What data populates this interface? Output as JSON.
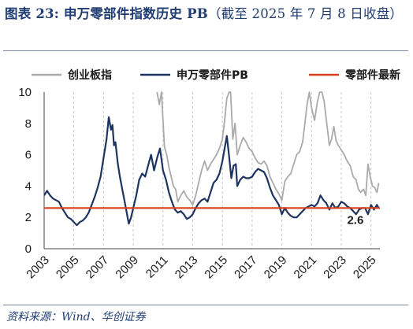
{
  "title": {
    "main": "图表 23: 申万零部件指数历史 PB",
    "sub": "（截至 2025 年 7 月 8 日收盘）"
  },
  "source": "资料来源：Wind、华创证券",
  "chart_data": {
    "type": "line",
    "title": "申万零部件指数历史 PB",
    "xlabel": "",
    "ylabel": "",
    "ylim": [
      0,
      10
    ],
    "y_ticks": [
      "0",
      "2",
      "4",
      "6",
      "8",
      "10"
    ],
    "xlim": [
      2003,
      2025.6
    ],
    "x_ticks": [
      "2003",
      "2005",
      "2007",
      "2009",
      "2011",
      "2013",
      "2015",
      "2017",
      "2019",
      "2021",
      "2023",
      "2025"
    ],
    "grid": "vertical dashed",
    "legend_position": "top",
    "series": [
      {
        "name": "创业板指",
        "color": "#aaaaaa",
        "x": [
          2010.6,
          2010.75,
          2010.9,
          2011.0,
          2011.1,
          2011.25,
          2011.4,
          2011.55,
          2011.7,
          2011.85,
          2012.0,
          2012.2,
          2012.4,
          2012.6,
          2012.8,
          2013.0,
          2013.2,
          2013.4,
          2013.6,
          2013.8,
          2014.0,
          2014.2,
          2014.4,
          2014.6,
          2014.8,
          2015.0,
          2015.15,
          2015.3,
          2015.45,
          2015.55,
          2015.7,
          2015.85,
          2016.0,
          2016.2,
          2016.4,
          2016.6,
          2016.8,
          2017.0,
          2017.2,
          2017.4,
          2017.6,
          2017.8,
          2018.0,
          2018.2,
          2018.4,
          2018.6,
          2018.8,
          2019.0,
          2019.2,
          2019.4,
          2019.6,
          2019.8,
          2020.0,
          2020.2,
          2020.4,
          2020.55,
          2020.7,
          2020.85,
          2021.0,
          2021.2,
          2021.4,
          2021.55,
          2021.7,
          2021.85,
          2022.0,
          2022.2,
          2022.35,
          2022.5,
          2022.65,
          2022.8,
          2023.0,
          2023.2,
          2023.4,
          2023.6,
          2023.8,
          2024.0,
          2024.15,
          2024.3,
          2024.5,
          2024.65,
          2024.8,
          2024.95,
          2025.1,
          2025.25,
          2025.4,
          2025.52
        ],
        "values": [
          10.0,
          9.2,
          10.0,
          8.2,
          6.5,
          6.0,
          5.2,
          4.6,
          4.0,
          3.8,
          3.0,
          3.4,
          3.7,
          3.3,
          3.1,
          2.8,
          3.4,
          4.2,
          5.0,
          5.6,
          5.0,
          5.4,
          5.7,
          6.0,
          6.4,
          7.0,
          8.2,
          9.6,
          10.0,
          10.0,
          7.0,
          8.0,
          6.0,
          6.6,
          7.1,
          6.8,
          6.4,
          6.2,
          5.8,
          5.5,
          5.4,
          5.6,
          5.3,
          4.6,
          4.2,
          3.8,
          3.5,
          3.1,
          4.3,
          4.6,
          4.8,
          5.4,
          6.0,
          6.2,
          6.8,
          8.0,
          9.2,
          10.0,
          9.0,
          8.2,
          9.4,
          10.0,
          10.0,
          9.4,
          8.2,
          6.6,
          7.0,
          7.8,
          6.9,
          6.6,
          6.3,
          6.0,
          5.6,
          5.3,
          4.6,
          4.4,
          3.8,
          3.6,
          3.8,
          3.4,
          5.4,
          4.6,
          4.0,
          3.9,
          3.6,
          4.2
        ]
      },
      {
        "name": "申万零部件PB",
        "color": "#1d3461",
        "x": [
          2003.0,
          2003.2,
          2003.4,
          2003.6,
          2003.8,
          2004.0,
          2004.2,
          2004.4,
          2004.6,
          2004.8,
          2005.0,
          2005.2,
          2005.4,
          2005.6,
          2005.8,
          2006.0,
          2006.2,
          2006.4,
          2006.6,
          2006.8,
          2007.0,
          2007.2,
          2007.35,
          2007.5,
          2007.6,
          2007.7,
          2007.8,
          2007.95,
          2008.1,
          2008.3,
          2008.5,
          2008.7,
          2008.85,
          2009.0,
          2009.2,
          2009.4,
          2009.6,
          2009.8,
          2010.0,
          2010.2,
          2010.4,
          2010.6,
          2010.8,
          2011.0,
          2011.2,
          2011.4,
          2011.6,
          2011.8,
          2012.0,
          2012.2,
          2012.4,
          2012.6,
          2012.8,
          2013.0,
          2013.2,
          2013.4,
          2013.6,
          2013.8,
          2014.0,
          2014.2,
          2014.4,
          2014.6,
          2014.8,
          2015.0,
          2015.15,
          2015.3,
          2015.45,
          2015.6,
          2015.75,
          2015.9,
          2016.0,
          2016.2,
          2016.4,
          2016.6,
          2016.8,
          2017.0,
          2017.2,
          2017.4,
          2017.6,
          2017.8,
          2018.0,
          2018.2,
          2018.4,
          2018.6,
          2018.8,
          2019.0,
          2019.2,
          2019.4,
          2019.6,
          2019.8,
          2020.0,
          2020.2,
          2020.4,
          2020.6,
          2020.8,
          2021.0,
          2021.2,
          2021.4,
          2021.6,
          2021.8,
          2022.0,
          2022.2,
          2022.4,
          2022.6,
          2022.8,
          2023.0,
          2023.2,
          2023.4,
          2023.6,
          2023.8,
          2024.0,
          2024.2,
          2024.4,
          2024.6,
          2024.8,
          2025.0,
          2025.2,
          2025.4,
          2025.52
        ],
        "values": [
          3.4,
          3.7,
          3.4,
          3.2,
          3.1,
          3.0,
          2.6,
          2.3,
          2.0,
          1.9,
          1.7,
          1.5,
          1.7,
          1.8,
          2.0,
          2.3,
          2.8,
          3.3,
          3.9,
          4.6,
          5.8,
          7.0,
          8.4,
          7.6,
          7.9,
          6.6,
          6.8,
          5.5,
          4.6,
          3.6,
          2.6,
          1.6,
          2.0,
          2.6,
          3.4,
          4.4,
          4.8,
          4.6,
          5.3,
          6.0,
          5.0,
          5.8,
          6.4,
          5.0,
          4.4,
          3.6,
          3.0,
          2.5,
          2.3,
          2.4,
          2.2,
          1.9,
          2.0,
          2.2,
          2.6,
          2.9,
          3.1,
          3.2,
          3.0,
          3.6,
          4.2,
          4.4,
          4.8,
          5.6,
          6.4,
          7.2,
          5.9,
          4.5,
          5.3,
          5.4,
          4.0,
          4.4,
          4.6,
          4.5,
          4.5,
          4.6,
          4.9,
          5.1,
          5.0,
          4.9,
          4.5,
          3.9,
          3.4,
          3.1,
          2.8,
          2.2,
          2.6,
          2.3,
          2.1,
          2.0,
          2.0,
          2.2,
          2.4,
          2.6,
          2.7,
          2.8,
          2.7,
          2.9,
          3.4,
          3.1,
          2.9,
          2.5,
          2.9,
          2.6,
          2.7,
          3.0,
          2.9,
          2.7,
          2.6,
          2.4,
          2.2,
          2.5,
          2.6,
          2.6,
          2.2,
          2.8,
          2.5,
          2.8,
          2.6
        ]
      },
      {
        "name": "零部件最新",
        "color": "#d9401f",
        "x": [
          2003.0,
          2025.6
        ],
        "values": [
          2.6,
          2.6
        ]
      }
    ],
    "annotations": [
      {
        "text": "2.6",
        "x": 2023.95,
        "y": 2.6
      }
    ]
  }
}
